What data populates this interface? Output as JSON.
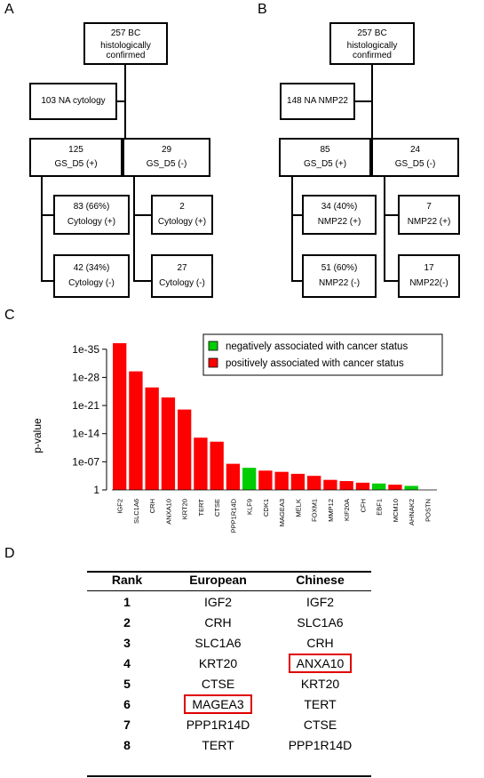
{
  "panelA": {
    "label": "A",
    "root": {
      "line1": "257 BC",
      "line2": "histologically",
      "line3": "confirmed"
    },
    "na": "103  NA cytology",
    "pos": {
      "count": "125",
      "label": "GS_D5 (+)"
    },
    "neg": {
      "count": "29",
      "label": "GS_D5 (-)"
    },
    "pos_pos": {
      "count": "83 (66%)",
      "label": "Cytology (+)"
    },
    "pos_neg": {
      "count": "42 (34%)",
      "label": "Cytology (-)"
    },
    "neg_pos": {
      "count": "2",
      "label": "Cytology (+)"
    },
    "neg_neg": {
      "count": "27",
      "label": "Cytology (-)"
    }
  },
  "panelB": {
    "label": "B",
    "root": {
      "line1": "257 BC",
      "line2": "histologically",
      "line3": "confirmed"
    },
    "na": "148  NA NMP22",
    "pos": {
      "count": "85",
      "label": "GS_D5 (+)"
    },
    "neg": {
      "count": "24",
      "label": "GS_D5 (-)"
    },
    "pos_pos": {
      "count": "34 (40%)",
      "label": "NMP22 (+)"
    },
    "pos_neg": {
      "count": "51 (60%)",
      "label": "NMP22 (-)"
    },
    "neg_pos": {
      "count": "7",
      "label": "NMP22 (+)"
    },
    "neg_neg": {
      "count": "17",
      "label": "NMP22(-)"
    }
  },
  "panelC": {
    "label": "C"
  },
  "chart_data": {
    "type": "bar",
    "ylabel": "p-value",
    "yscale": "-log10",
    "ytick_labels": [
      "1",
      "1e-07",
      "1e-14",
      "1e-21",
      "1e-28",
      "1e-35"
    ],
    "ytick_exponents": [
      0,
      7,
      14,
      21,
      28,
      35
    ],
    "ylim_exponent": [
      0,
      36.5
    ],
    "categories": [
      "IGF2",
      "SLC1A6",
      "CRH",
      "ANXA10",
      "KRT20",
      "TERT",
      "CTSE",
      "PPP1R14D",
      "KLF9",
      "CDK1",
      "MAGEA3",
      "MELK",
      "FOXM1",
      "MMP12",
      "KIF20A",
      "CFH",
      "EBF1",
      "MCM10",
      "AHNAK2",
      "POSTN"
    ],
    "neg_log10_p": [
      36.5,
      29.5,
      25.5,
      23.0,
      20.0,
      13.0,
      12.0,
      6.5,
      5.5,
      4.8,
      4.5,
      4.0,
      3.5,
      2.5,
      2.2,
      1.8,
      1.6,
      1.3,
      1.0,
      0
    ],
    "association": [
      "positive",
      "positive",
      "positive",
      "positive",
      "positive",
      "positive",
      "positive",
      "positive",
      "negative",
      "positive",
      "positive",
      "positive",
      "positive",
      "positive",
      "positive",
      "positive",
      "negative",
      "positive",
      "negative",
      "positive"
    ],
    "legend": {
      "negative": "negatively associated with cancer status",
      "positive": "positively associated with cancer status",
      "placement": "top-right"
    },
    "colors": {
      "positive": "#ff0000",
      "negative": "#00cc00"
    }
  },
  "panelD": {
    "label": "D",
    "headers": [
      "Rank",
      "European",
      "Chinese"
    ],
    "rows": [
      {
        "rank": "1",
        "european": "IGF2",
        "chinese": "IGF2"
      },
      {
        "rank": "2",
        "european": "CRH",
        "chinese": "SLC1A6"
      },
      {
        "rank": "3",
        "european": "SLC1A6",
        "chinese": "CRH"
      },
      {
        "rank": "4",
        "european": "KRT20",
        "chinese": "ANXA10"
      },
      {
        "rank": "5",
        "european": "CTSE",
        "chinese": "KRT20"
      },
      {
        "rank": "6",
        "european": "MAGEA3",
        "chinese": "TERT"
      },
      {
        "rank": "7",
        "european": "PPP1R14D",
        "chinese": "CTSE"
      },
      {
        "rank": "8",
        "european": "TERT",
        "chinese": "PPP1R14D"
      }
    ],
    "highlighted": [
      "ANXA10",
      "MAGEA3"
    ],
    "highlight_color": "#e00000"
  }
}
